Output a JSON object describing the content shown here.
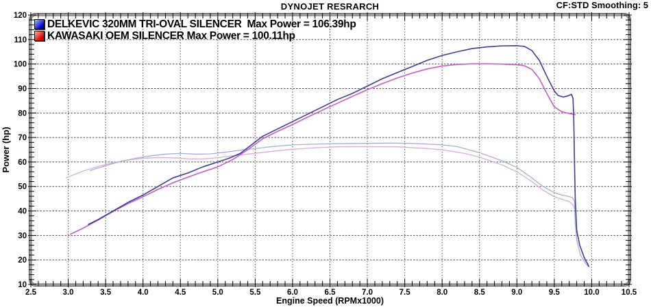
{
  "header": {
    "title": "DYNOJET RESRARCH",
    "right_info": "CF:STD Smoothing: 5"
  },
  "chart_data": {
    "type": "line",
    "title": "DYNOJET RESRARCH",
    "xlabel": "Engine Speed (RPMx1000)",
    "ylabel": "Power (hp)",
    "xlim": [
      2.5,
      10.5
    ],
    "ylim": [
      10,
      120
    ],
    "x_major_step": 0.5,
    "x_minor_step": 0.1,
    "y_major_step": 10,
    "y_minor_step": 2,
    "grid": true,
    "grid_color": "#4a4a4a",
    "border_color": "#949494",
    "legend_position": "top-left",
    "legend": [
      {
        "name": "DELKEVIC 320MM TRI-OVAL SILENCER",
        "max_power_hp": 106.39,
        "label": "DELKEVIC 320MM TRI-OVAL SILENCER  Max Power = 106.39hp",
        "swatch": {
          "dark": "#0000cc",
          "light": "#a8baff"
        }
      },
      {
        "name": "KAWASAKI OEM SILENCER",
        "max_power_hp": 100.11,
        "label": "KAWASAKI OEM SILENCER Max Power = 100.11hp",
        "swatch": {
          "dark": "#dd0000",
          "light": "#ffb0ab"
        }
      }
    ],
    "series": [
      {
        "name": "kawasaki-torque-trace",
        "color": "#d9abdd",
        "width": 1.3,
        "points": [
          [
            2.97,
            53.5
          ],
          [
            3.2,
            56.3
          ],
          [
            3.4,
            58.2
          ],
          [
            3.6,
            59.7
          ],
          [
            3.8,
            60.8
          ],
          [
            4.0,
            61.5
          ],
          [
            4.2,
            61.8
          ],
          [
            4.4,
            61.7
          ],
          [
            4.6,
            61.3
          ],
          [
            4.8,
            61.2
          ],
          [
            5.0,
            61.8
          ],
          [
            5.2,
            62.5
          ],
          [
            5.4,
            63.2
          ],
          [
            5.6,
            63.9
          ],
          [
            5.8,
            64.6
          ],
          [
            6.0,
            65.2
          ],
          [
            6.3,
            65.8
          ],
          [
            6.6,
            66.2
          ],
          [
            7.0,
            66.3
          ],
          [
            7.4,
            66.2
          ],
          [
            7.8,
            65.5
          ],
          [
            8.0,
            65.0
          ],
          [
            8.3,
            63.5
          ],
          [
            8.5,
            62.0
          ],
          [
            8.8,
            58.8
          ],
          [
            9.0,
            56.0
          ],
          [
            9.2,
            52.0
          ],
          [
            9.35,
            48.5
          ],
          [
            9.5,
            45.8
          ],
          [
            9.6,
            44.8
          ],
          [
            9.7,
            43.8
          ],
          [
            9.75,
            42.5
          ],
          [
            9.77,
            41.0
          ]
        ]
      },
      {
        "name": "delkevic-torque-trace",
        "color": "#a2aed8",
        "width": 1.3,
        "points": [
          [
            3.29,
            56.5
          ],
          [
            3.5,
            58.5
          ],
          [
            3.7,
            60.2
          ],
          [
            3.9,
            61.5
          ],
          [
            4.1,
            62.5
          ],
          [
            4.3,
            63.2
          ],
          [
            4.5,
            63.5
          ],
          [
            4.7,
            63.2
          ],
          [
            4.9,
            63.3
          ],
          [
            5.1,
            64.0
          ],
          [
            5.3,
            64.8
          ],
          [
            5.5,
            65.5
          ],
          [
            5.7,
            66.2
          ],
          [
            6.0,
            67.0
          ],
          [
            6.3,
            67.3
          ],
          [
            6.6,
            67.5
          ],
          [
            7.0,
            67.6
          ],
          [
            7.3,
            67.7
          ],
          [
            7.6,
            67.6
          ],
          [
            8.0,
            67.0
          ],
          [
            8.2,
            66.3
          ],
          [
            8.5,
            63.8
          ],
          [
            8.8,
            60.5
          ],
          [
            9.0,
            57.8
          ],
          [
            9.2,
            53.5
          ],
          [
            9.35,
            50.0
          ],
          [
            9.5,
            47.5
          ],
          [
            9.6,
            46.5
          ],
          [
            9.68,
            46.0
          ],
          [
            9.74,
            45.5
          ],
          [
            9.77,
            44.0
          ],
          [
            9.78,
            35.0
          ],
          [
            9.8,
            28.0
          ],
          [
            9.85,
            22.0
          ],
          [
            9.92,
            18.5
          ],
          [
            9.97,
            17.0
          ]
        ]
      },
      {
        "name": "kawasaki-power-trace",
        "color": "#c75ac7",
        "width": 1.6,
        "points": [
          [
            3.03,
            30.5
          ],
          [
            3.2,
            33.0
          ],
          [
            3.4,
            36.3
          ],
          [
            3.6,
            39.8
          ],
          [
            3.8,
            43.0
          ],
          [
            4.0,
            45.8
          ],
          [
            4.2,
            48.8
          ],
          [
            4.4,
            51.5
          ],
          [
            4.6,
            53.8
          ],
          [
            4.8,
            56.0
          ],
          [
            5.0,
            58.0
          ],
          [
            5.2,
            61.0
          ],
          [
            5.4,
            65.0
          ],
          [
            5.6,
            69.5
          ],
          [
            5.8,
            72.5
          ],
          [
            6.0,
            75.3
          ],
          [
            6.2,
            78.3
          ],
          [
            6.4,
            81.2
          ],
          [
            6.6,
            84.0
          ],
          [
            6.8,
            86.8
          ],
          [
            7.0,
            89.5
          ],
          [
            7.2,
            92.0
          ],
          [
            7.4,
            94.3
          ],
          [
            7.6,
            96.3
          ],
          [
            7.8,
            98.0
          ],
          [
            8.0,
            99.2
          ],
          [
            8.2,
            99.8
          ],
          [
            8.4,
            100.1
          ],
          [
            8.6,
            100.1
          ],
          [
            8.8,
            100.0
          ],
          [
            9.0,
            99.7
          ],
          [
            9.1,
            99.3
          ],
          [
            9.2,
            97.8
          ],
          [
            9.3,
            94.0
          ],
          [
            9.4,
            88.0
          ],
          [
            9.5,
            82.5
          ],
          [
            9.6,
            80.5
          ],
          [
            9.7,
            79.8
          ],
          [
            9.78,
            79.3
          ]
        ]
      },
      {
        "name": "delkevic-power-trace",
        "color": "#3c3c96",
        "width": 1.6,
        "points": [
          [
            3.27,
            34.5
          ],
          [
            3.4,
            36.5
          ],
          [
            3.6,
            40.0
          ],
          [
            3.8,
            43.5
          ],
          [
            4.0,
            46.5
          ],
          [
            4.2,
            50.0
          ],
          [
            4.4,
            53.5
          ],
          [
            4.6,
            55.5
          ],
          [
            4.8,
            58.0
          ],
          [
            5.0,
            60.0
          ],
          [
            5.15,
            61.5
          ],
          [
            5.3,
            63.5
          ],
          [
            5.45,
            67.0
          ],
          [
            5.6,
            70.5
          ],
          [
            5.8,
            73.5
          ],
          [
            6.0,
            76.5
          ],
          [
            6.2,
            79.5
          ],
          [
            6.4,
            82.5
          ],
          [
            6.6,
            85.5
          ],
          [
            6.8,
            88.0
          ],
          [
            7.0,
            91.0
          ],
          [
            7.2,
            94.0
          ],
          [
            7.4,
            96.5
          ],
          [
            7.6,
            99.0
          ],
          [
            7.8,
            101.5
          ],
          [
            8.0,
            103.5
          ],
          [
            8.2,
            105.0
          ],
          [
            8.4,
            106.3
          ],
          [
            8.6,
            107.0
          ],
          [
            8.8,
            107.4
          ],
          [
            9.0,
            107.5
          ],
          [
            9.1,
            107.2
          ],
          [
            9.2,
            105.5
          ],
          [
            9.3,
            101.5
          ],
          [
            9.4,
            95.0
          ],
          [
            9.5,
            89.0
          ],
          [
            9.55,
            87.2
          ],
          [
            9.62,
            86.5
          ],
          [
            9.68,
            87.0
          ],
          [
            9.73,
            87.6
          ],
          [
            9.75,
            86.0
          ],
          [
            9.76,
            78.0
          ],
          [
            9.77,
            60.0
          ],
          [
            9.78,
            45.0
          ],
          [
            9.8,
            32.0
          ],
          [
            9.84,
            26.0
          ],
          [
            9.9,
            21.0
          ],
          [
            9.96,
            17.5
          ]
        ]
      }
    ]
  }
}
